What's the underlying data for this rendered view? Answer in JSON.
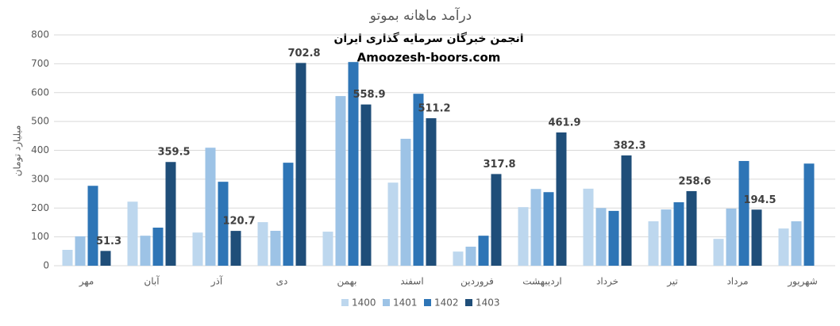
{
  "chart_data": {
    "type": "bar",
    "title": "درآمد ماهانه بموتو",
    "annotations": [
      "انجمن خبرگان سرمایه گذاری ایران",
      "Amoozesh-boors.com"
    ],
    "y_label": "میلیارد تومان",
    "categories": [
      "مهر",
      "آبان",
      "آذر",
      "دی",
      "بهمن",
      "اسفند",
      "فروردین",
      "اردیبهشت",
      "خرداد",
      "تیر",
      "مرداد",
      "شهریور"
    ],
    "series": [
      {
        "name": "1400",
        "color": "#bdd7ee",
        "values": [
          55,
          222,
          115,
          151,
          118,
          288,
          49,
          203,
          267,
          154,
          93,
          129
        ]
      },
      {
        "name": "1401",
        "color": "#9dc3e6",
        "values": [
          102,
          104,
          409,
          121,
          588,
          440,
          66,
          266,
          200,
          195,
          198,
          154
        ]
      },
      {
        "name": "1402",
        "color": "#2e75b6",
        "values": [
          277,
          132,
          291,
          357,
          706,
          596,
          104,
          255,
          190,
          220,
          363,
          354
        ]
      },
      {
        "name": "1403",
        "color": "#1f4e79",
        "values": [
          51.3,
          359.5,
          120.7,
          702.8,
          558.9,
          511.2,
          317.8,
          461.9,
          382.3,
          258.6,
          194.5,
          null
        ],
        "data_labels": true
      }
    ],
    "ylim": [
      0,
      800
    ],
    "yticks": [
      0,
      100,
      200,
      300,
      400,
      500,
      600,
      700,
      800
    ],
    "grid": true,
    "legend": "bottom"
  }
}
